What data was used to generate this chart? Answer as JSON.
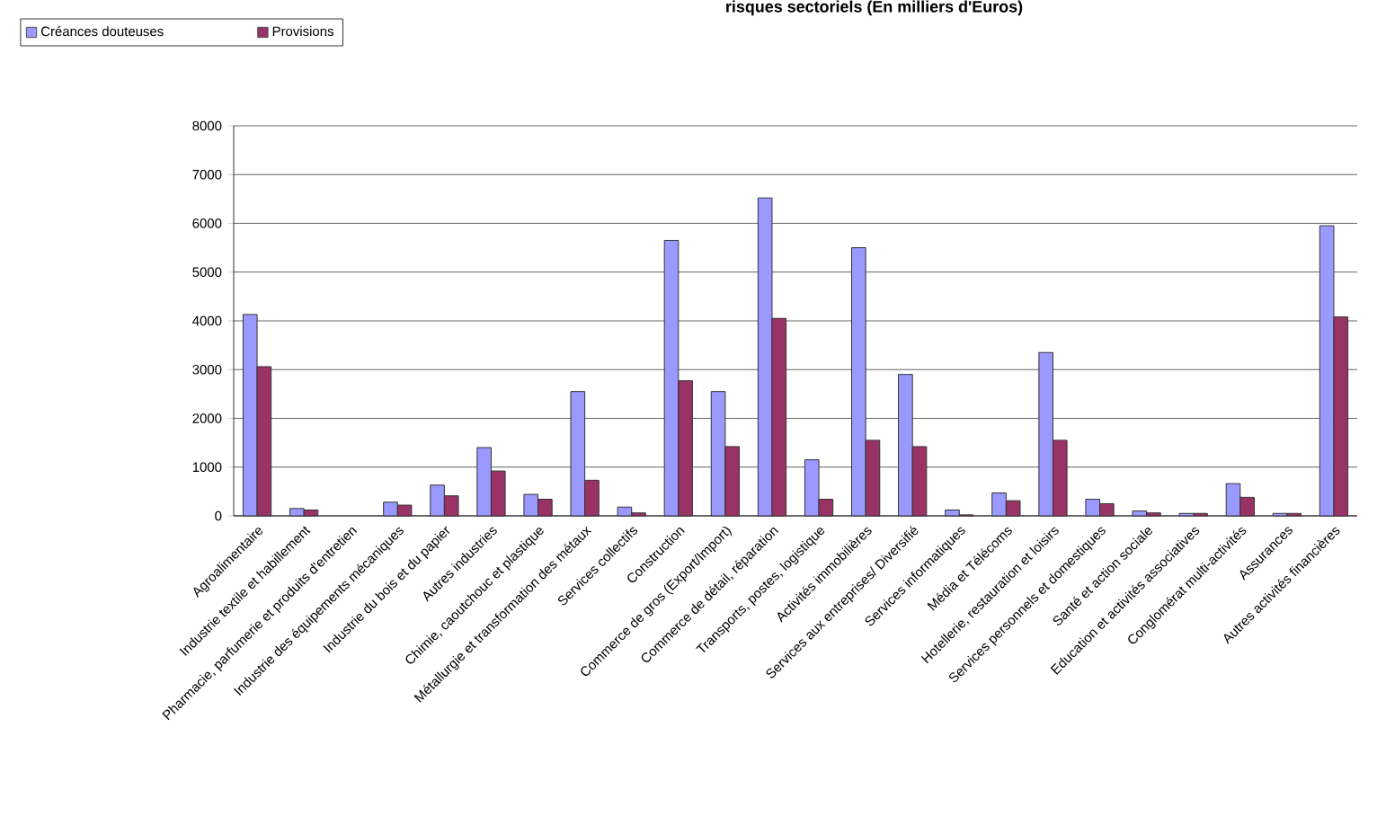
{
  "chart_data": {
    "type": "bar",
    "title": "risques sectoriels (En milliers d'Euros)",
    "categories": [
      "Agroalimentaire",
      "Industrie textile et habillement",
      "Pharmacie, parfumerie et produits d'entretien",
      "Industrie des équipements mécaniques",
      "Industrie du bois et du papier",
      "Autres industries",
      "Chimie, caoutchouc et plastique",
      "Métallurgie et transformation des métaux",
      "Services collectifs",
      "Construction",
      "Commerce de gros (Export/Import)",
      "Commerce de détail, réparation",
      "Transports, postes, logistique",
      "Activités immobilières",
      "Services aux entreprises/ Diversifié",
      "Services informatiques",
      "Média et Télécoms",
      "Hotellerie, restauration et loisirs",
      "Services personnels et domestiques",
      "Santé et action sociale",
      "Education et activités associatives",
      "Conglomérat multi-activités",
      "Assurances",
      "Autres activités financières"
    ],
    "series": [
      {
        "name": "Créances douteuses",
        "color": "#9999ff",
        "values": [
          4130,
          150,
          null,
          280,
          630,
          1400,
          440,
          2550,
          180,
          5650,
          2550,
          6520,
          1150,
          5500,
          2900,
          120,
          470,
          3350,
          340,
          100,
          50,
          660,
          50,
          5950
        ]
      },
      {
        "name": "Provisions",
        "color": "#993366",
        "values": [
          3060,
          120,
          null,
          220,
          410,
          920,
          340,
          730,
          60,
          2770,
          1420,
          4050,
          340,
          1550,
          1420,
          20,
          310,
          1550,
          250,
          60,
          50,
          380,
          50,
          4080
        ]
      }
    ],
    "ylim": [
      0,
      8000
    ],
    "yticks": [
      0,
      1000,
      2000,
      3000,
      4000,
      5000,
      6000,
      7000,
      8000
    ],
    "grid": "y",
    "legend": "top left"
  }
}
